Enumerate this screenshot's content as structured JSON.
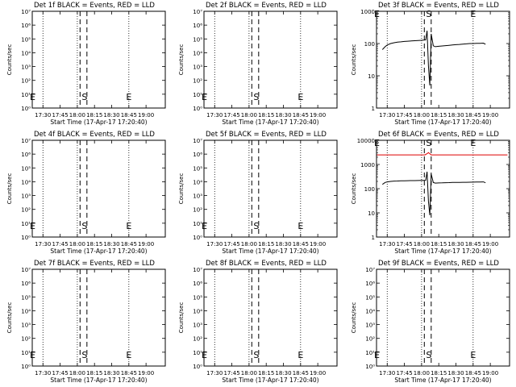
{
  "figure": {
    "x_axis_label": "Start Time (17-Apr-17 17:20:40)",
    "y_axis_label": "Counts/sec",
    "colors": {
      "events": "#000000",
      "lld": "#dd0000",
      "axis": "#000000",
      "background": "#ffffff"
    }
  },
  "chart_data": [
    {
      "type": "line",
      "title": "Det 1f BLACK = Events, RED = LLD",
      "scale": "log",
      "ylim": [
        1,
        10000000
      ],
      "ytick_labels": [
        "10⁰",
        "10¹",
        "10²",
        "10³",
        "10⁴",
        "10⁵",
        "10⁶",
        "10⁷"
      ],
      "xticks": [
        "17:30",
        "17:45",
        "18:00",
        "18:15",
        "18:30",
        "18:45",
        "19:00"
      ],
      "markers": [
        {
          "label": "E"
        },
        {
          "label": "S"
        },
        {
          "label": "E"
        }
      ],
      "series": []
    },
    {
      "type": "line",
      "title": "Det 2f BLACK = Events, RED = LLD",
      "scale": "log",
      "ylim": [
        1,
        10000000
      ],
      "ytick_labels": [
        "10⁰",
        "10¹",
        "10²",
        "10³",
        "10⁴",
        "10⁵",
        "10⁶",
        "10⁷"
      ],
      "xticks": [
        "17:30",
        "17:45",
        "18:00",
        "18:15",
        "18:30",
        "18:45",
        "19:00"
      ],
      "markers": [
        {
          "label": "E"
        },
        {
          "label": "S"
        },
        {
          "label": "E"
        }
      ],
      "series": []
    },
    {
      "type": "line",
      "title": "Det 3f BLACK = Events, RED = LLD",
      "scale": "log",
      "ylim": [
        1,
        1000
      ],
      "ytick_labels": [
        "1",
        "10",
        "100",
        "1000"
      ],
      "xticks": [
        "17:30",
        "17:45",
        "18:00",
        "18:15",
        "18:30",
        "18:45",
        "19:00"
      ],
      "markers": [
        {
          "label": "E"
        },
        {
          "label": "S"
        },
        {
          "label": "E"
        }
      ],
      "series": [
        {
          "color": "#000000",
          "x": [
            17.43,
            17.47,
            17.5,
            17.55,
            17.6,
            17.65,
            17.7,
            17.75,
            17.8,
            17.85,
            17.9,
            17.95,
            18.0,
            18.03,
            18.06,
            18.08,
            18.1,
            18.12,
            18.14,
            18.17,
            18.2,
            18.25,
            18.3,
            18.35,
            18.4,
            18.45,
            18.5,
            18.55,
            18.6,
            18.65,
            18.7,
            18.75,
            18.8,
            18.85,
            18.9,
            18.93
          ],
          "y": [
            65,
            80,
            90,
            100,
            106,
            110,
            113,
            116,
            118,
            120,
            122,
            124,
            126,
            128,
            130,
            250,
            20,
            5,
            200,
            85,
            80,
            82,
            84,
            86,
            88,
            90,
            92,
            94,
            96,
            98,
            100,
            100,
            101,
            102,
            103,
            95
          ]
        }
      ]
    },
    {
      "type": "line",
      "title": "Det 4f BLACK = Events, RED = LLD",
      "scale": "log",
      "ylim": [
        1,
        10000000
      ],
      "ytick_labels": [
        "10⁰",
        "10¹",
        "10²",
        "10³",
        "10⁴",
        "10⁵",
        "10⁶",
        "10⁷"
      ],
      "xticks": [
        "17:30",
        "17:45",
        "18:00",
        "18:15",
        "18:30",
        "18:45",
        "19:00"
      ],
      "markers": [
        {
          "label": "E"
        },
        {
          "label": "S"
        },
        {
          "label": "E"
        }
      ],
      "series": []
    },
    {
      "type": "line",
      "title": "Det 5f BLACK = Events, RED = LLD",
      "scale": "log",
      "ylim": [
        1,
        10000000
      ],
      "ytick_labels": [
        "10⁰",
        "10¹",
        "10²",
        "10³",
        "10⁴",
        "10⁵",
        "10⁶",
        "10⁷"
      ],
      "xticks": [
        "17:30",
        "17:45",
        "18:00",
        "18:15",
        "18:30",
        "18:45",
        "19:00"
      ],
      "markers": [
        {
          "label": "E"
        },
        {
          "label": "S"
        },
        {
          "label": "E"
        }
      ],
      "series": []
    },
    {
      "type": "line",
      "title": "Det 6f BLACK = Events, RED = LLD",
      "scale": "log",
      "ylim": [
        1,
        10000
      ],
      "ytick_labels": [
        "1",
        "10",
        "100",
        "1000",
        "10000"
      ],
      "xticks": [
        "17:30",
        "17:45",
        "18:00",
        "18:15",
        "18:30",
        "18:45",
        "19:00"
      ],
      "markers": [
        {
          "label": "E"
        },
        {
          "label": "S"
        },
        {
          "label": "E"
        }
      ],
      "series": [
        {
          "color": "#dd0000",
          "x": [
            17.35,
            17.5,
            17.7,
            17.9,
            18.0,
            18.05,
            18.08,
            18.1,
            18.12,
            18.14,
            18.17,
            18.2,
            18.4,
            18.6,
            18.8,
            19.0,
            19.25
          ],
          "y": [
            2500,
            2500,
            2500,
            2500,
            2500,
            2500,
            2800,
            3100,
            2800,
            2500,
            2500,
            2500,
            2500,
            2500,
            2500,
            2500,
            2500
          ]
        },
        {
          "color": "#000000",
          "x": [
            17.43,
            17.47,
            17.5,
            17.55,
            17.6,
            17.65,
            17.7,
            17.75,
            17.8,
            17.85,
            17.9,
            17.95,
            18.0,
            18.03,
            18.06,
            18.08,
            18.1,
            18.12,
            18.14,
            18.17,
            18.2,
            18.25,
            18.3,
            18.35,
            18.4,
            18.45,
            18.5,
            18.55,
            18.6,
            18.65,
            18.7,
            18.75,
            18.8,
            18.85,
            18.9,
            18.93
          ],
          "y": [
            150,
            180,
            190,
            200,
            205,
            208,
            210,
            212,
            214,
            215,
            216,
            217,
            218,
            219,
            220,
            500,
            30,
            8,
            400,
            180,
            170,
            172,
            174,
            176,
            178,
            180,
            181,
            182,
            183,
            184,
            185,
            186,
            187,
            188,
            190,
            175
          ]
        }
      ]
    },
    {
      "type": "line",
      "title": "Det 7f BLACK = Events, RED = LLD",
      "scale": "log",
      "ylim": [
        1,
        10000000
      ],
      "ytick_labels": [
        "10⁰",
        "10¹",
        "10²",
        "10³",
        "10⁴",
        "10⁵",
        "10⁶",
        "10⁷"
      ],
      "xticks": [
        "17:30",
        "17:45",
        "18:00",
        "18:15",
        "18:30",
        "18:45",
        "19:00"
      ],
      "markers": [
        {
          "label": "E"
        },
        {
          "label": "S"
        },
        {
          "label": "E"
        }
      ],
      "series": []
    },
    {
      "type": "line",
      "title": "Det 8f BLACK = Events, RED = LLD",
      "scale": "log",
      "ylim": [
        1,
        10000000
      ],
      "ytick_labels": [
        "10⁰",
        "10¹",
        "10²",
        "10³",
        "10⁴",
        "10⁵",
        "10⁶",
        "10⁷"
      ],
      "xticks": [
        "17:30",
        "17:45",
        "18:00",
        "18:15",
        "18:30",
        "18:45",
        "19:00"
      ],
      "markers": [
        {
          "label": "E"
        },
        {
          "label": "S"
        },
        {
          "label": "E"
        }
      ],
      "series": []
    },
    {
      "type": "line",
      "title": "Det 9f BLACK = Events, RED = LLD",
      "scale": "log",
      "ylim": [
        1,
        10000000
      ],
      "ytick_labels": [
        "10⁰",
        "10¹",
        "10²",
        "10³",
        "10⁴",
        "10⁵",
        "10⁶",
        "10⁷"
      ],
      "xticks": [
        "17:30",
        "17:45",
        "18:00",
        "18:15",
        "18:30",
        "18:45",
        "19:00"
      ],
      "markers": [
        {
          "label": "E"
        },
        {
          "label": "S"
        },
        {
          "label": "E"
        }
      ],
      "series": []
    }
  ]
}
